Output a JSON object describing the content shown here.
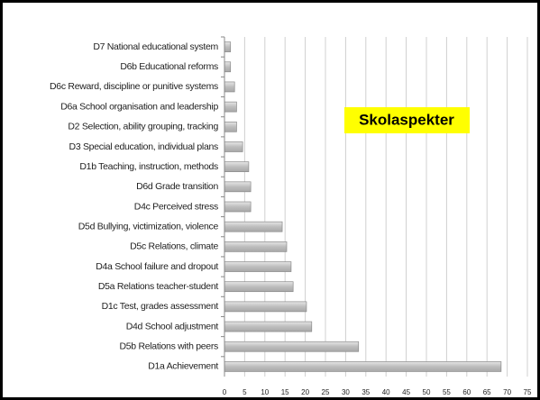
{
  "chart_data": {
    "type": "barh",
    "annotation": "Skolaspekter",
    "categories": [
      "D7 National educational system",
      "D6b Educational reforms",
      "D6c Reward, discipline or punitive systems",
      "D6a School organisation and leadership",
      "D2 Selection, ability grouping, tracking",
      "D3 Special education, individual plans",
      "D1b Teaching, instruction, methods",
      "D6d Grade transition",
      "D4c Perceived stress",
      "D5d Bullying, victimization, violence",
      "D5c Relations, climate",
      "D4a School failure and dropout",
      "D5a Relations teacher-student",
      "D1c Test, grades assessment",
      "D4d School adjustment",
      "D5b Relations with peers",
      "D1a Achievement"
    ],
    "values": [
      1.5,
      1.5,
      2.5,
      3,
      3,
      4.5,
      6,
      6.5,
      6.5,
      14.3,
      15.4,
      16.5,
      17,
      20.3,
      21.6,
      33.2,
      68.5
    ],
    "color": "#bdbdbd",
    "xlim": [
      0,
      77
    ],
    "xticks": [
      0,
      5,
      10,
      15,
      20,
      25,
      30,
      35,
      40,
      45,
      50,
      55,
      60,
      65,
      70,
      75
    ],
    "grid": true
  }
}
